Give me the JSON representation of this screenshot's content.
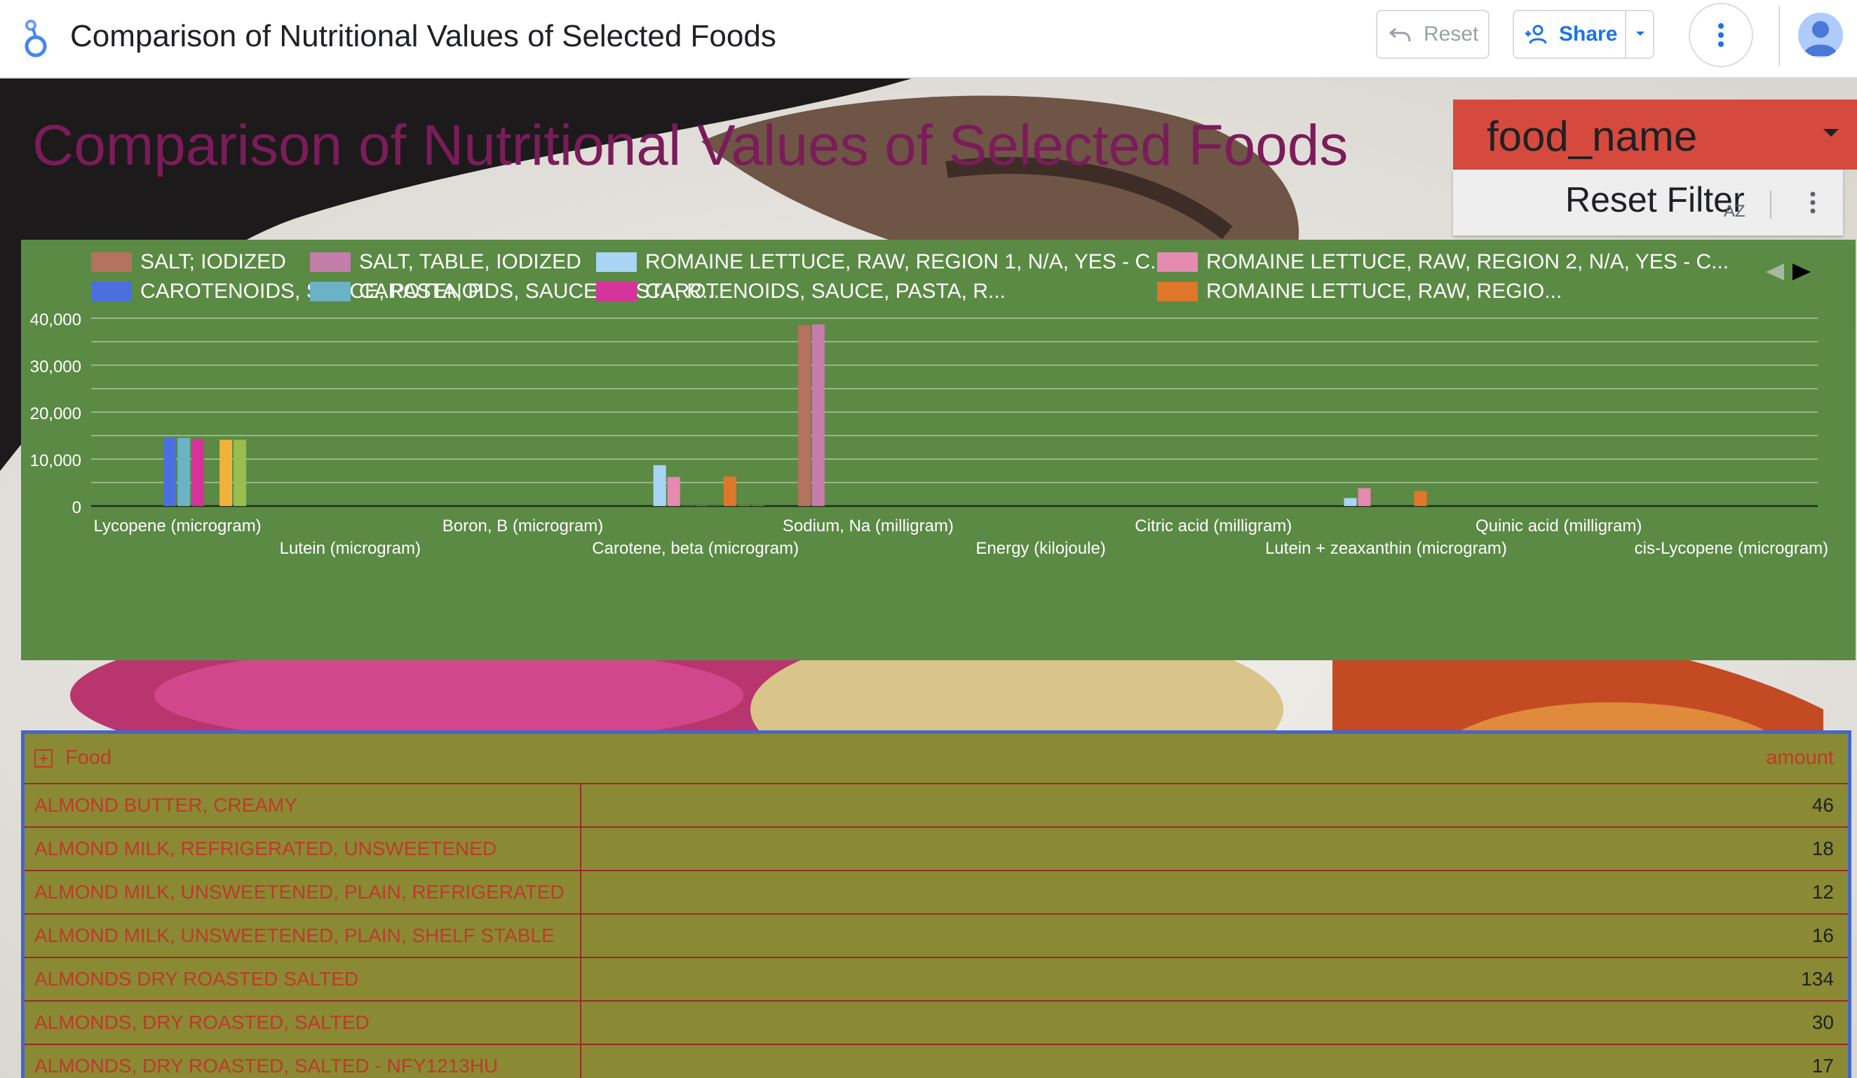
{
  "app": {
    "title": "Comparison of Nutritional Values of Selected Foods",
    "reset_label": "Reset",
    "share_label": "Share"
  },
  "report": {
    "title": "Comparison of Nutritional Values of Selected Foods"
  },
  "filter": {
    "field_label": "food_name",
    "reset_label": "Reset Filter",
    "sort_glyph": "AZ"
  },
  "colors": {
    "title": "#7b1c5a",
    "chart_bg": "#5a8a44",
    "table_bg": "#8a8a34",
    "filter_bg": "#d64a3d",
    "accent": "#1a73e8"
  },
  "chart_data": {
    "type": "bar",
    "title": "",
    "xlabel": "",
    "ylabel": "",
    "ylim": [
      0,
      40000
    ],
    "yticks": [
      0,
      10000,
      20000,
      30000,
      40000
    ],
    "ytick_labels": [
      "0",
      "10,000",
      "20,000",
      "30,000",
      "40,000"
    ],
    "grid": true,
    "legend_position": "top",
    "categories": [
      "Lycopene (microgram)",
      "Lutein (microgram)",
      "Boron, B (microgram)",
      "Carotene, beta (microgram)",
      "Sodium, Na (milligram)",
      "Energy (kilojoule)",
      "Citric acid (milligram)",
      "Lutein + zeaxanthin (microgram)",
      "Quinic acid (milligram)",
      "cis-Lycopene (microgram)"
    ],
    "series": [
      {
        "name": "SALT; IODIZED",
        "color": "#b5725e",
        "values": [
          0,
          0,
          0,
          0,
          38500,
          0,
          0,
          0,
          0,
          0
        ]
      },
      {
        "name": "SALT, TABLE, IODIZED",
        "color": "#c47dab",
        "values": [
          0,
          0,
          0,
          0,
          38700,
          0,
          0,
          0,
          0,
          0
        ]
      },
      {
        "name": "ROMAINE LETTUCE, RAW, REGION 1, N/A, YES - C...",
        "color": "#a8d4f5",
        "values": [
          0,
          0,
          0,
          8700,
          0,
          0,
          0,
          1700,
          0,
          0
        ]
      },
      {
        "name": "ROMAINE LETTUCE, RAW, REGION 2, N/A, YES - C...",
        "color": "#e58ab0",
        "values": [
          0,
          0,
          0,
          6200,
          0,
          0,
          0,
          3800,
          0,
          0
        ]
      },
      {
        "name": "CAROTENOIDS, SAUCE, PASTA, P...",
        "color": "#4c6fe0",
        "values": [
          14500,
          0,
          0,
          100,
          0,
          0,
          0,
          0,
          0,
          0
        ]
      },
      {
        "name": "CAROTENOIDS, SAUCE, PASTA, R...",
        "color": "#6bb2c7",
        "values": [
          14500,
          0,
          0,
          100,
          0,
          0,
          0,
          0,
          0,
          0
        ]
      },
      {
        "name": "CAROTENOIDS, SAUCE, PASTA, R...",
        "color": "#d6339a",
        "values": [
          14300,
          0,
          0,
          100,
          0,
          0,
          0,
          0,
          0,
          0
        ]
      },
      {
        "name": "ROMAINE LETTUCE, RAW, REGIO...",
        "color": "#e0762a",
        "values": [
          0,
          0,
          0,
          6300,
          0,
          0,
          0,
          3200,
          0,
          0
        ]
      },
      {
        "name": "",
        "color": "#f2b23a",
        "values": [
          14100,
          0,
          0,
          100,
          0,
          0,
          0,
          0,
          0,
          0
        ]
      },
      {
        "name": "",
        "color": "#9abd50",
        "values": [
          14100,
          0,
          0,
          100,
          0,
          0,
          0,
          0,
          0,
          0
        ]
      }
    ]
  },
  "table": {
    "headers": {
      "food": "Food",
      "amount": "amount"
    },
    "rows": [
      {
        "food": "ALMOND BUTTER, CREAMY",
        "amount": "46"
      },
      {
        "food": "ALMOND MILK, REFRIGERATED, UNSWEETENED",
        "amount": "18"
      },
      {
        "food": "ALMOND MILK, UNSWEETENED, PLAIN, REFRIGERATED",
        "amount": "12"
      },
      {
        "food": "ALMOND MILK, UNSWEETENED, PLAIN, SHELF STABLE",
        "amount": "16"
      },
      {
        "food": "ALMONDS DRY ROASTED SALTED",
        "amount": "134"
      },
      {
        "food": "ALMONDS, DRY ROASTED, SALTED",
        "amount": "30"
      },
      {
        "food": "ALMONDS, DRY ROASTED, SALTED - NFY1213HU",
        "amount": "17"
      }
    ]
  }
}
